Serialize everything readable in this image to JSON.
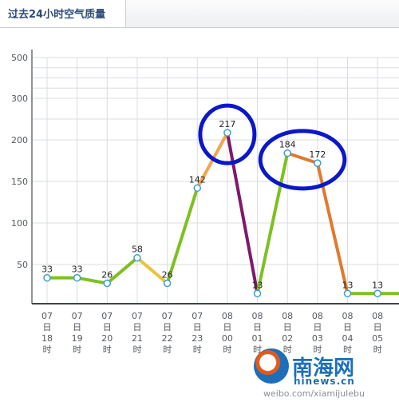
{
  "tab": {
    "title": "过去24小时空气质量"
  },
  "chart_data": {
    "type": "line",
    "ylim": [
      0,
      500
    ],
    "yticks": [
      50,
      100,
      150,
      200,
      250,
      300,
      350,
      400,
      450,
      500
    ],
    "ytick_labels": [
      "50",
      "100",
      "150",
      "200",
      "300",
      "500"
    ],
    "categories": [
      [
        "07",
        "日",
        "18",
        "时"
      ],
      [
        "07",
        "日",
        "19",
        "时"
      ],
      [
        "07",
        "日",
        "20",
        "时"
      ],
      [
        "07",
        "日",
        "21",
        "时"
      ],
      [
        "07",
        "日",
        "22",
        "时"
      ],
      [
        "07",
        "日",
        "23",
        "时"
      ],
      [
        "08",
        "日",
        "00",
        "时"
      ],
      [
        "08",
        "日",
        "01",
        "时"
      ],
      [
        "08",
        "日",
        "02",
        "时"
      ],
      [
        "08",
        "日",
        "03",
        "时"
      ],
      [
        "08",
        "日",
        "04",
        "时"
      ],
      [
        "08",
        "日",
        "05",
        "时"
      ]
    ],
    "values": [
      33,
      33,
      26,
      58,
      26,
      142,
      217,
      13,
      184,
      172,
      13,
      13
    ],
    "segment_colors": [
      "#7cc11f",
      "#7cc11f",
      "#7cc11f",
      "#e8c53a",
      "#7cc11f",
      "#f2a54a",
      "#7d1a6b",
      "#7cc11f",
      "#e07a2e",
      "#e07a2e",
      "#7cc11f",
      "#7cc11f"
    ],
    "grid": true,
    "annotations": [
      {
        "type": "circle",
        "color": "#0a18c8",
        "target_index": 6
      },
      {
        "type": "circle",
        "color": "#0a18c8",
        "target_index": [
          8,
          9
        ]
      }
    ]
  },
  "watermark": {
    "site_name": "南海网",
    "domain": "hinews.cn",
    "weibo": "weibo.com/xiamijulebu"
  }
}
